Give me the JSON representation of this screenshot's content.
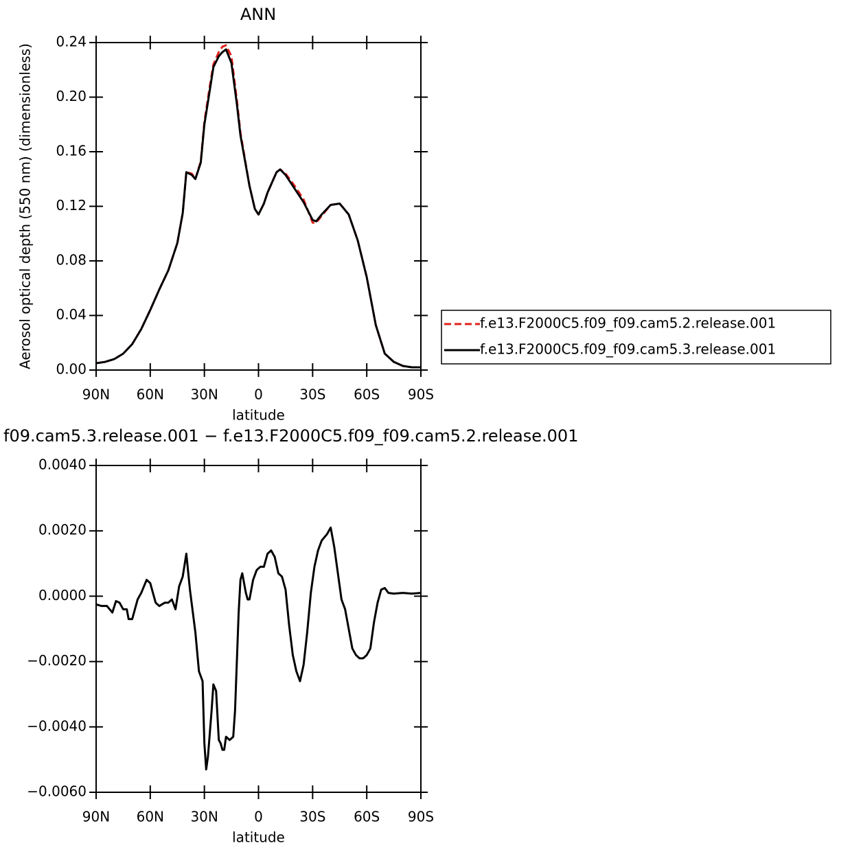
{
  "chart_data": [
    {
      "type": "line",
      "title": "ANN",
      "xlabel": "latitude",
      "ylabel": "Aerosol optical depth (550 nm) (dimensionless)",
      "x": [
        90,
        85,
        80,
        75,
        70,
        65,
        60,
        55,
        50,
        45,
        42,
        40,
        37,
        35,
        32,
        30,
        27,
        25,
        22,
        20,
        18,
        15,
        12,
        10,
        5,
        2,
        0,
        -3,
        -5,
        -10,
        -12,
        -15,
        -20,
        -25,
        -30,
        -32,
        -35,
        -40,
        -45,
        -50,
        -55,
        -60,
        -65,
        -70,
        -75,
        -80,
        -85,
        -90
      ],
      "xlim": [
        90,
        -90
      ],
      "xticks": [
        {
          "value": 90,
          "label": "90N"
        },
        {
          "value": 60,
          "label": "60N"
        },
        {
          "value": 30,
          "label": "30N"
        },
        0,
        {
          "value": -30,
          "label": "30S"
        },
        {
          "value": -60,
          "label": "60S"
        },
        {
          "value": -90,
          "label": "90S"
        }
      ],
      "ylim": [
        0,
        0.24
      ],
      "yticks": [
        {
          "value": 0,
          "label": "0.00"
        },
        0.04,
        0.08,
        0.12,
        0.16,
        {
          "value": 0.2,
          "label": "0.20"
        },
        0.24
      ],
      "legend": "right",
      "series": [
        {
          "name": "f.e13.F2000C5.f09_f09.cam5.2.release.001",
          "color": "#e0201b",
          "style": "dashed",
          "values": [
            0.005,
            0.006,
            0.008,
            0.012,
            0.019,
            0.03,
            0.044,
            0.059,
            0.073,
            0.093,
            0.115,
            0.145,
            0.144,
            0.14,
            0.153,
            0.182,
            0.208,
            0.224,
            0.233,
            0.237,
            0.238,
            0.23,
            0.198,
            0.174,
            0.135,
            0.118,
            0.114,
            0.122,
            0.13,
            0.145,
            0.147,
            0.144,
            0.135,
            0.125,
            0.108,
            0.108,
            0.113,
            0.121,
            0.122,
            0.114,
            0.095,
            0.068,
            0.033,
            0.012,
            0.006,
            0.003,
            0.002,
            0.002
          ]
        },
        {
          "name": "f.e13.F2000C5.f09_f09.cam5.3.release.001",
          "color": "#000000",
          "style": "solid",
          "values": [
            0.005,
            0.006,
            0.008,
            0.012,
            0.019,
            0.03,
            0.044,
            0.059,
            0.073,
            0.093,
            0.115,
            0.145,
            0.143,
            0.14,
            0.152,
            0.18,
            0.205,
            0.222,
            0.23,
            0.233,
            0.235,
            0.225,
            0.195,
            0.172,
            0.135,
            0.118,
            0.114,
            0.122,
            0.13,
            0.145,
            0.147,
            0.143,
            0.133,
            0.123,
            0.11,
            0.109,
            0.114,
            0.121,
            0.122,
            0.114,
            0.095,
            0.068,
            0.033,
            0.012,
            0.006,
            0.003,
            0.002,
            0.002
          ]
        }
      ]
    },
    {
      "type": "line",
      "title": "f09.cam5.3.release.001 − f.e13.F2000C5.f09_f09.cam5.2.release.001",
      "xlabel": "latitude",
      "x": [
        90,
        87,
        84,
        81,
        79,
        77,
        75,
        73,
        72,
        70,
        67,
        65,
        62,
        60,
        57,
        55,
        52,
        50,
        48,
        46,
        44,
        42,
        40,
        38,
        35,
        33,
        31,
        30,
        29,
        28,
        26,
        25,
        23.5,
        22,
        21,
        20,
        19,
        18,
        16,
        14,
        13,
        11,
        10,
        9,
        7,
        6,
        5,
        3,
        1,
        -1,
        -3,
        -5,
        -7,
        -9,
        -11,
        -13,
        -15,
        -17,
        -19,
        -21,
        -23,
        -25,
        -27,
        -29,
        -31,
        -33,
        -35,
        -38,
        -40,
        -42,
        -44,
        -46,
        -48,
        -50,
        -52,
        -54,
        -56,
        -58,
        -60,
        -62,
        -64,
        -66,
        -68,
        -70,
        -72,
        -75,
        -80,
        -85,
        -90
      ],
      "xlim": [
        90,
        -90
      ],
      "xticks": [
        {
          "value": 90,
          "label": "90N"
        },
        {
          "value": 60,
          "label": "60N"
        },
        {
          "value": 30,
          "label": "30N"
        },
        0,
        {
          "value": -30,
          "label": "30S"
        },
        {
          "value": -60,
          "label": "60S"
        },
        {
          "value": -90,
          "label": "90S"
        }
      ],
      "ylim": [
        -0.006,
        0.004
      ],
      "yticks": [
        {
          "value": -0.006,
          "label": "−0.0060"
        },
        {
          "value": -0.004,
          "label": "−0.0040"
        },
        {
          "value": -0.002,
          "label": "−0.0020"
        },
        {
          "value": 0,
          "label": "0.0000"
        },
        {
          "value": 0.002,
          "label": "0.0020"
        },
        {
          "value": 0.004,
          "label": "0.0040"
        }
      ],
      "color": "#000000",
      "values": [
        -0.00025,
        -0.0003,
        -0.0003,
        -0.0005,
        -0.00015,
        -0.0002,
        -0.0004,
        -0.0004,
        -0.0007,
        -0.0007,
        -0.0001,
        0.0001,
        0.0005,
        0.0004,
        -0.0002,
        -0.0003,
        -0.0002,
        -0.0002,
        -0.0001,
        -0.0004,
        0.0003,
        0.0006,
        0.0013,
        0.0002,
        -0.0011,
        -0.0023,
        -0.0026,
        -0.0045,
        -0.0053,
        -0.0049,
        -0.0035,
        -0.0027,
        -0.0029,
        -0.0044,
        -0.0045,
        -0.0047,
        -0.0047,
        -0.0043,
        -0.0044,
        -0.0043,
        -0.0035,
        -0.0005,
        0.0005,
        0.0007,
        0.0001,
        -0.0001,
        -0.0001,
        0.0005,
        0.0008,
        0.0009,
        0.0009,
        0.0013,
        0.0014,
        0.0012,
        0.0007,
        0.0006,
        0.0002,
        -0.0009,
        -0.0018,
        -0.0023,
        -0.0026,
        -0.0021,
        -0.0011,
        0.0001,
        0.0009,
        0.0014,
        0.0017,
        0.0019,
        0.0021,
        0.0015,
        0.0007,
        -0.0001,
        -0.0004,
        -0.001,
        -0.0016,
        -0.0018,
        -0.0019,
        -0.0019,
        -0.0018,
        -0.0016,
        -0.0008,
        -0.0002,
        0.0002,
        0.00025,
        0.0001,
        8e-05,
        0.0001,
        8e-05,
        0.0001
      ]
    }
  ]
}
